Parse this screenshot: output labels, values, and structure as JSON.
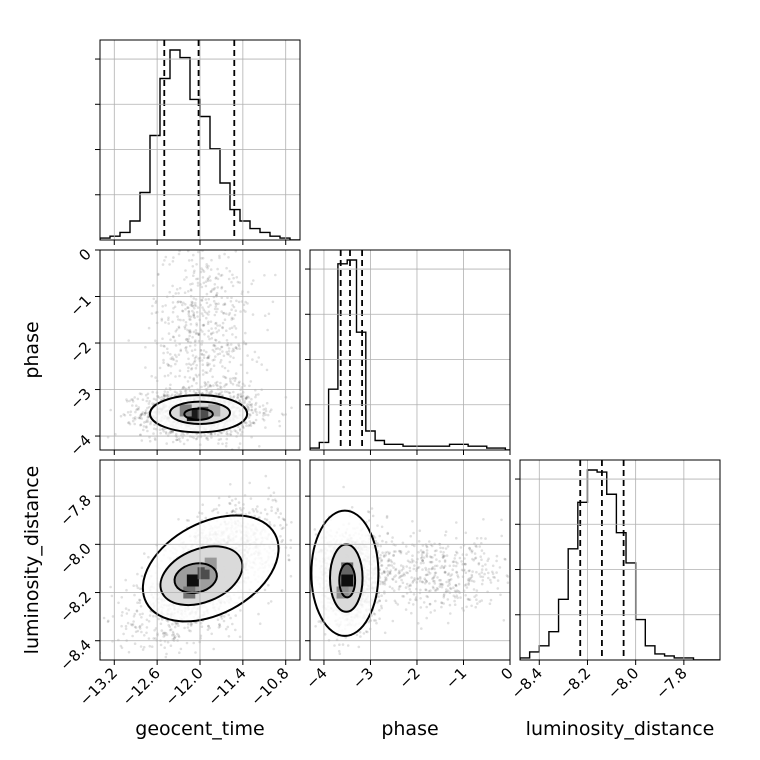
{
  "chart_data": {
    "type": "corner",
    "parameters": [
      "geocent_time",
      "phase",
      "luminosity_distance"
    ],
    "axis_labels": {
      "geocent_time": "geocent_time",
      "phase": "phase",
      "luminosity_distance": "luminosity_distance"
    },
    "ranges": {
      "geocent_time": [
        -13.4,
        -10.6
      ],
      "phase": [
        -4.3,
        0.0
      ],
      "luminosity_distance": [
        -8.48,
        -7.65
      ]
    },
    "ticks": {
      "geocent_time": [
        "−13.2",
        "−12.6",
        "−12.0",
        "−11.4",
        "−10.8"
      ],
      "phase": [
        "−4",
        "−3",
        "−2",
        "−1",
        "0"
      ],
      "luminosity_distance": [
        "−8.4",
        "−8.2",
        "−8.0",
        "−7.8"
      ]
    },
    "tick_values": {
      "geocent_time": [
        -13.2,
        -12.6,
        -12.0,
        -11.4,
        -10.8
      ],
      "phase": [
        -4,
        -3,
        -2,
        -1,
        0
      ],
      "luminosity_distance": [
        -8.4,
        -8.2,
        -8.0,
        -7.8
      ]
    },
    "quantiles": {
      "geocent_time": [
        -12.5,
        -12.02,
        -11.52
      ],
      "phase": [
        -3.64,
        -3.44,
        -3.18
      ],
      "luminosity_distance": [
        -8.23,
        -8.14,
        -8.05
      ]
    },
    "histograms": {
      "geocent_time": {
        "edges": [
          -13.4,
          -13.26,
          -13.12,
          -12.98,
          -12.84,
          -12.7,
          -12.56,
          -12.42,
          -12.28,
          -12.14,
          -12.0,
          -11.86,
          -11.72,
          -11.58,
          -11.44,
          -11.3,
          -11.16,
          -11.02,
          -10.88,
          -10.74,
          -10.6
        ],
        "counts": [
          0.01,
          0.02,
          0.04,
          0.1,
          0.25,
          0.55,
          0.85,
          1.0,
          0.96,
          0.74,
          0.65,
          0.48,
          0.3,
          0.16,
          0.1,
          0.06,
          0.04,
          0.02,
          0.01,
          0.0
        ]
      },
      "phase": {
        "edges": [
          -4.3,
          -4.1,
          -3.9,
          -3.7,
          -3.5,
          -3.3,
          -3.1,
          -2.9,
          -2.7,
          -2.5,
          -2.3,
          -2.1,
          -1.9,
          -1.7,
          -1.5,
          -1.3,
          -1.1,
          -0.9,
          -0.7,
          -0.5,
          -0.3,
          -0.1,
          0.0
        ],
        "counts": [
          0.01,
          0.04,
          0.32,
          0.98,
          1.0,
          0.62,
          0.1,
          0.05,
          0.03,
          0.03,
          0.02,
          0.02,
          0.02,
          0.02,
          0.02,
          0.03,
          0.03,
          0.02,
          0.02,
          0.01,
          0.01,
          0.0
        ]
      },
      "luminosity_distance": {
        "edges": [
          -8.48,
          -8.44,
          -8.4,
          -8.36,
          -8.32,
          -8.28,
          -8.24,
          -8.2,
          -8.16,
          -8.12,
          -8.08,
          -8.04,
          -8.0,
          -7.96,
          -7.92,
          -7.88,
          -7.84,
          -7.8,
          -7.76,
          -7.72,
          -7.68,
          -7.65
        ],
        "counts": [
          0.01,
          0.04,
          0.07,
          0.14,
          0.3,
          0.55,
          0.78,
          0.94,
          0.93,
          0.82,
          0.63,
          0.48,
          0.2,
          0.07,
          0.03,
          0.02,
          0.01,
          0.01,
          0.0,
          0.0,
          0.0
        ]
      }
    },
    "panels_2d": [
      {
        "x": "geocent_time",
        "y": "phase",
        "scatter": {
          "core": {
            "center": [
              -12.0,
              -3.5
            ],
            "spread": [
              0.4,
              0.25
            ],
            "count": 1600
          },
          "tail": {
            "center": [
              -11.95,
              -1.7
            ],
            "spread": [
              0.35,
              1.0
            ],
            "count": 600
          }
        },
        "contours": [
          {
            "center": [
              -12.02,
              -3.52
            ],
            "radii": [
              0.68,
              0.4
            ],
            "rotation_deg": 0
          },
          {
            "center": [
              -12.0,
              -3.5
            ],
            "radii": [
              0.42,
              0.24
            ],
            "rotation_deg": 0
          },
          {
            "center": [
              -12.02,
              -3.53
            ],
            "radii": [
              0.2,
              0.12
            ],
            "rotation_deg": 0
          }
        ],
        "core_cells": [
          {
            "x": -12.1,
            "y": -3.55,
            "shade": 0.9
          },
          {
            "x": -11.95,
            "y": -3.5,
            "shade": 0.7
          },
          {
            "x": -12.2,
            "y": -3.45,
            "shade": 0.5
          },
          {
            "x": -11.8,
            "y": -3.45,
            "shade": 0.35
          }
        ]
      },
      {
        "x": "geocent_time",
        "y": "luminosity_distance",
        "scatter": {
          "core": {
            "center": [
              -11.9,
              -8.12
            ],
            "spread": [
              0.45,
              0.12
            ],
            "corr": 0.6,
            "count": 2400
          }
        },
        "contours": [
          {
            "center": [
              -11.85,
              -8.1
            ],
            "radii": [
              1.02,
              0.19
            ],
            "rotation_deg": 28
          },
          {
            "center": [
              -11.98,
              -8.13
            ],
            "radii": [
              0.6,
              0.11
            ],
            "rotation_deg": 22
          },
          {
            "center": [
              -12.06,
              -8.14
            ],
            "radii": [
              0.3,
              0.06
            ],
            "rotation_deg": 12
          }
        ],
        "core_cells": [
          {
            "x": -12.1,
            "y": -8.15,
            "shade": 0.95
          },
          {
            "x": -11.95,
            "y": -8.12,
            "shade": 0.7
          },
          {
            "x": -12.15,
            "y": -8.2,
            "shade": 0.55
          },
          {
            "x": -11.85,
            "y": -8.08,
            "shade": 0.4
          }
        ]
      },
      {
        "x": "phase",
        "y": "luminosity_distance",
        "scatter": {
          "core": {
            "center": [
              -3.45,
              -8.14
            ],
            "spread": [
              0.3,
              0.1
            ],
            "count": 1600
          },
          "tail": {
            "center": [
              -1.8,
              -8.12
            ],
            "spread": [
              1.0,
              0.08
            ],
            "count": 600
          }
        },
        "contours": [
          {
            "center": [
              -3.55,
              -8.12
            ],
            "radii": [
              0.72,
              0.26
            ],
            "rotation_deg": 0
          },
          {
            "center": [
              -3.52,
              -8.14
            ],
            "radii": [
              0.35,
              0.14
            ],
            "rotation_deg": 0
          },
          {
            "center": [
              -3.5,
              -8.15
            ],
            "radii": [
              0.17,
              0.07
            ],
            "rotation_deg": 0
          }
        ],
        "core_cells": [
          {
            "x": -3.5,
            "y": -8.15,
            "shade": 0.95
          },
          {
            "x": -3.5,
            "y": -8.1,
            "shade": 0.6
          },
          {
            "x": -3.6,
            "y": -8.2,
            "shade": 0.45
          }
        ]
      }
    ],
    "grid": true
  }
}
